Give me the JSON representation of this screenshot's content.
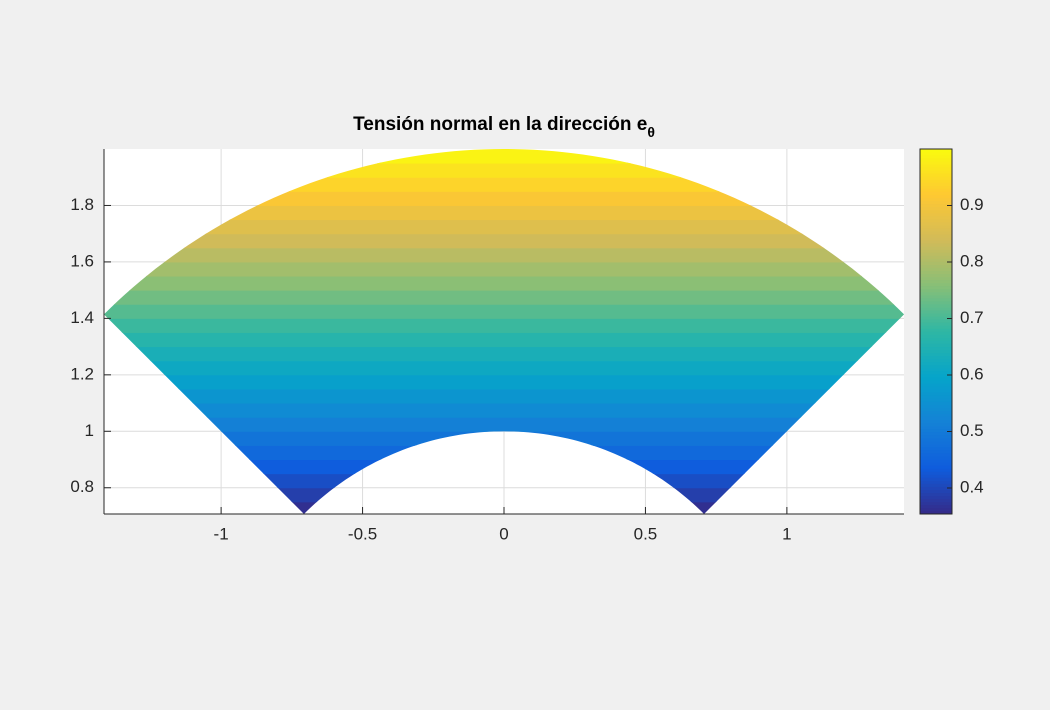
{
  "chart_data": {
    "type": "sector-field",
    "title": "Tensión normal en la dirección e",
    "title_subscript": "θ",
    "r_inner": 1,
    "r_outer": 2,
    "theta_deg": [
      45,
      135
    ],
    "field": {
      "y": [
        0.725,
        0.775,
        0.825,
        0.875,
        0.925,
        0.975,
        1.025,
        1.075,
        1.125,
        1.175,
        1.225,
        1.275,
        1.325,
        1.375,
        1.425,
        1.475,
        1.525,
        1.575,
        1.625,
        1.675,
        1.725,
        1.775,
        1.825,
        1.875,
        1.925,
        1.975
      ],
      "step": 0.05,
      "values": [
        0.3625,
        0.3875,
        0.4125,
        0.4375,
        0.4625,
        0.4875,
        0.5125,
        0.5375,
        0.5625,
        0.5875,
        0.6125,
        0.6375,
        0.6625,
        0.6875,
        0.7125,
        0.7375,
        0.7625,
        0.7875,
        0.8125,
        0.8375,
        0.8625,
        0.8875,
        0.9125,
        0.9375,
        0.9625,
        0.9875
      ]
    },
    "colormap": [
      "#352a87",
      "#0f5cdd",
      "#1481d6",
      "#06a4ca",
      "#2eb7a4",
      "#87bf77",
      "#d1bb59",
      "#fec832",
      "#f9fb0e"
    ],
    "xlim": [
      -1.414,
      1.414
    ],
    "ylim": [
      0.707,
      2
    ],
    "xticks": [
      -1,
      -0.5,
      0,
      0.5,
      1
    ],
    "yticks": [
      0.8,
      1,
      1.2,
      1.4,
      1.6,
      1.8
    ],
    "clim": [
      0.354,
      1
    ],
    "cticks": [
      0.4,
      0.5,
      0.6,
      0.7,
      0.8,
      0.9
    ],
    "grid": true
  }
}
